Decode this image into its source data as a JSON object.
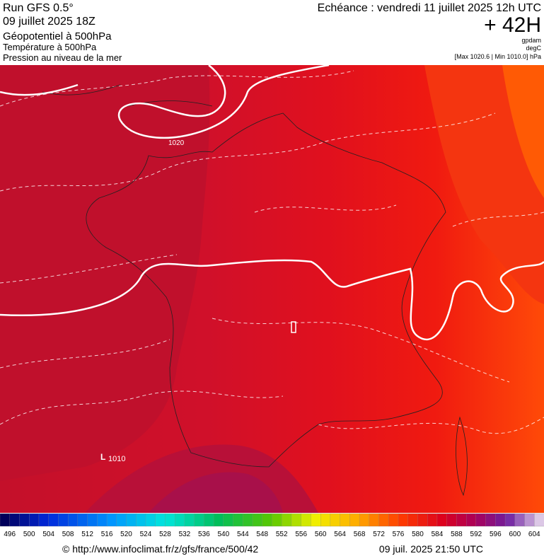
{
  "header": {
    "run": "Run GFS 0.5°",
    "run_date": "09 juillet 2025 18Z",
    "title": "Géopotentiel à 500hPa",
    "subtitle_1": "Température à 500hPa",
    "subtitle_2": "Pression au niveau de la mer",
    "forecast": "Echéance : vendredi 11 juillet 2025 12h UTC",
    "lead": "+ 42H",
    "unit_1": "gpdam",
    "unit_2": "degC",
    "range": "[Max 1020.6 | Min 1010.0] hPa"
  },
  "map": {
    "contour_label_high": "1020",
    "low_marker": "L",
    "contour_label_low": "1010"
  },
  "colorbar": {
    "labels": [
      496,
      500,
      504,
      508,
      512,
      516,
      520,
      524,
      528,
      532,
      536,
      540,
      544,
      548,
      552,
      556,
      560,
      564,
      568,
      572,
      576,
      580,
      584,
      588,
      592,
      596,
      600,
      604
    ]
  },
  "footer": {
    "url": "© http://www.infoclimat.fr/z/gfs/france/500/42",
    "timestamp": "09 juil. 2025 21:50 UTC"
  }
}
